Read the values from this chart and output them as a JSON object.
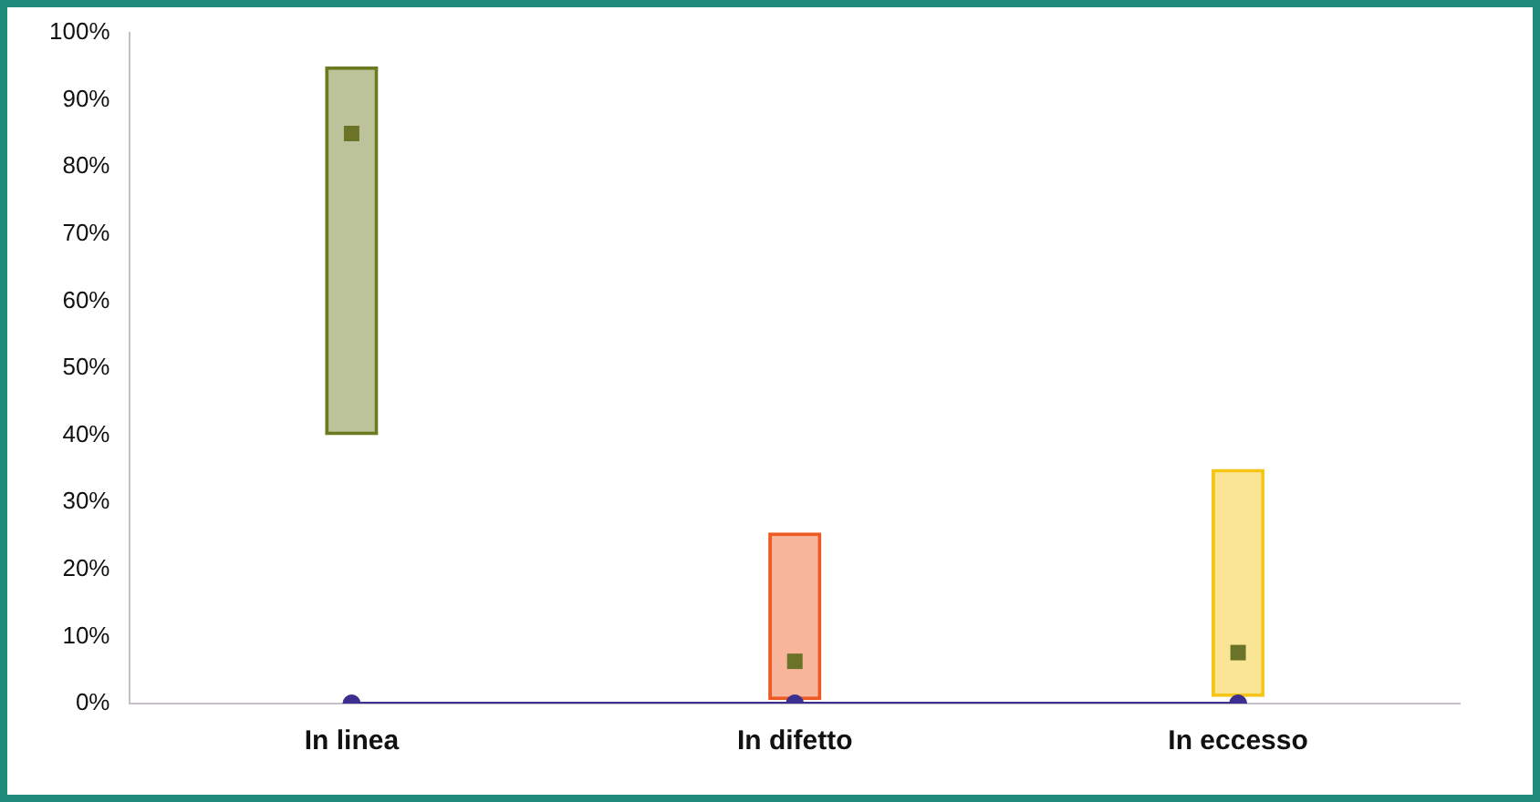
{
  "chart_data": {
    "type": "bar",
    "categories": [
      "In linea",
      "In difetto",
      "In eccesso"
    ],
    "series": [
      {
        "colors": [
          "#6b7a1e",
          "#ee5a24",
          "#f5c518"
        ],
        "values": [
          55,
          25,
          34
        ],
        "base": [
          40,
          0.5,
          1
        ]
      },
      {
        "type": "scatter",
        "color": "#6b7328",
        "marker": "square",
        "values": [
          85,
          6.3,
          7.6
        ],
        "x": [
          "In linea",
          "In difetto",
          "In eccesso"
        ]
      },
      {
        "type": "line",
        "color": "#3b2f8f",
        "values": [
          0,
          0,
          0
        ],
        "marker": "circle"
      }
    ],
    "ylim": [
      0,
      100
    ],
    "yticks": [
      {
        "value": 0,
        "label": "0%"
      },
      {
        "value": 10,
        "label": "10%"
      },
      {
        "value": 20,
        "label": "20%"
      },
      {
        "value": 30,
        "label": "30%"
      },
      {
        "value": 40,
        "label": "40%"
      },
      {
        "value": 50,
        "label": "50%"
      },
      {
        "value": 60,
        "label": "60%"
      },
      {
        "value": 70,
        "label": "70%"
      },
      {
        "value": 80,
        "label": "80%"
      },
      {
        "value": 90,
        "label": "90%"
      },
      {
        "value": 100,
        "label": "100%"
      }
    ],
    "grid": false,
    "legend": false
  }
}
